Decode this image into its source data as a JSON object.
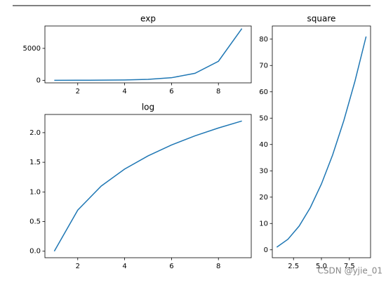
{
  "chart_data": [
    {
      "type": "line",
      "title": "exp",
      "x": [
        1,
        2,
        3,
        4,
        5,
        6,
        7,
        8,
        9
      ],
      "series": [
        {
          "color": "#1f77b4",
          "values": [
            2.718,
            7.389,
            20.09,
            54.6,
            148.4,
            403.4,
            1096.6,
            2981,
            8103
          ]
        }
      ],
      "xlim": [
        0.6,
        9.4
      ],
      "xticks": [
        2,
        4,
        6,
        8
      ],
      "ylim": [
        -402,
        8508
      ],
      "yticks": [
        0,
        5000
      ]
    },
    {
      "type": "line",
      "title": "log",
      "x": [
        1,
        2,
        3,
        4,
        5,
        6,
        7,
        8,
        9
      ],
      "series": [
        {
          "color": "#1f77b4",
          "values": [
            0,
            0.693,
            1.099,
            1.386,
            1.609,
            1.792,
            1.946,
            2.079,
            2.197
          ]
        }
      ],
      "xlim": [
        0.6,
        9.4
      ],
      "xticks": [
        2,
        4,
        6,
        8
      ],
      "ylim": [
        -0.11,
        2.307
      ],
      "yticks": [
        {
          "value": 0,
          "label": "0.0"
        },
        {
          "value": 0.5,
          "label": "0.5"
        },
        {
          "value": 1,
          "label": "1.0"
        },
        {
          "value": 1.5,
          "label": "1.5"
        },
        {
          "value": 2,
          "label": "2.0"
        }
      ]
    },
    {
      "type": "line",
      "title": "square",
      "x": [
        1,
        2,
        3,
        4,
        5,
        6,
        7,
        8,
        9
      ],
      "series": [
        {
          "color": "#1f77b4",
          "values": [
            1,
            4,
            9,
            16,
            25,
            36,
            49,
            64,
            81
          ]
        }
      ],
      "xlim": [
        0.6,
        9.4
      ],
      "xticks": [
        2.5,
        {
          "value": 5,
          "label": "5.0"
        },
        7.5
      ],
      "ylim": [
        -3,
        85
      ],
      "yticks": [
        0,
        10,
        20,
        30,
        40,
        50,
        60,
        70,
        80
      ]
    }
  ],
  "watermark": "CSDN @yjie_01"
}
